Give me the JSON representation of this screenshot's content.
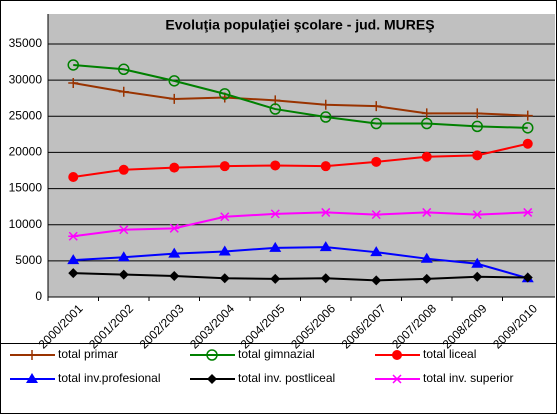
{
  "chart_data": {
    "type": "line",
    "title": "Evoluţia populaţiei şcolare - jud. MUREŞ",
    "categories": [
      "2000/2001",
      "2001/2002",
      "2002/2003",
      "2003/2004",
      "2004/2005",
      "2005/2006",
      "2006/2007",
      "2007/2008",
      "2008/2009",
      "2009/2010"
    ],
    "series": [
      {
        "name": "total primar",
        "color": "#993300",
        "marker": "plus",
        "values": [
          29600,
          28400,
          27400,
          27600,
          27200,
          26600,
          26400,
          25400,
          25400,
          25100
        ]
      },
      {
        "name": "total gimnazial",
        "color": "#008000",
        "marker": "circle-open",
        "values": [
          32100,
          31500,
          29900,
          28100,
          26000,
          24900,
          24000,
          24000,
          23600,
          23400
        ]
      },
      {
        "name": "total liceal",
        "color": "#ff0000",
        "marker": "circle",
        "values": [
          16600,
          17600,
          17900,
          18100,
          18200,
          18100,
          18700,
          19400,
          19600,
          21200
        ]
      },
      {
        "name": "total inv.profesional",
        "color": "#0000ff",
        "marker": "triangle",
        "values": [
          5100,
          5500,
          6000,
          6300,
          6800,
          6900,
          6200,
          5300,
          4600,
          2600
        ]
      },
      {
        "name": "total inv. postliceal",
        "color": "#000000",
        "marker": "diamond",
        "values": [
          3300,
          3100,
          2900,
          2600,
          2500,
          2600,
          2300,
          2500,
          2800,
          2700
        ]
      },
      {
        "name": "total inv. superior",
        "color": "#ff00ff",
        "marker": "star",
        "values": [
          8400,
          9300,
          9500,
          11100,
          11500,
          11700,
          11400,
          11700,
          11400,
          11700
        ]
      }
    ],
    "ylim": [
      0,
      35000
    ],
    "yticks": [
      0,
      5000,
      10000,
      15000,
      20000,
      25000,
      30000,
      35000
    ],
    "grid": true,
    "legend": "bottom"
  }
}
